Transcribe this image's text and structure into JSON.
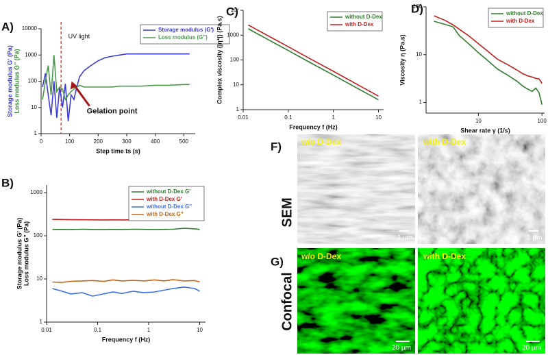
{
  "chart_data": [
    {
      "type": "line",
      "panel": "A)",
      "xlabel": "Step time ts (s)",
      "ylabel": [
        {
          "text": "Storage modulus G' (Pa)",
          "color": "#3a3ad8"
        },
        {
          "text": "Loss modulus G'' (Pa)",
          "color": "#3a8a3a"
        }
      ],
      "xscale": "linear",
      "yscale": "log",
      "xlim": [
        0,
        540
      ],
      "ylim": [
        1,
        10000
      ],
      "xticks": [
        0,
        100,
        200,
        300,
        400,
        500
      ],
      "yticks": [
        1,
        10,
        100,
        1000,
        10000
      ],
      "legend": "upper right",
      "x": [
        5,
        15,
        25,
        35,
        45,
        55,
        65,
        75,
        85,
        95,
        105,
        115,
        125,
        135,
        150,
        175,
        200,
        225,
        250,
        275,
        300,
        350,
        400,
        450,
        500,
        520
      ],
      "series": [
        {
          "name": "Storage modulus (G')",
          "color": "#3a3ad8",
          "values": [
            60,
            200,
            30,
            5,
            100,
            4,
            60,
            10,
            80,
            3,
            30,
            20,
            60,
            150,
            250,
            400,
            600,
            800,
            900,
            1000,
            1100,
            1100,
            1100,
            1100,
            1100,
            1100
          ]
        },
        {
          "name": "Loss modulus (G\")",
          "color": "#4a9a4a",
          "values": [
            20,
            100,
            400,
            30,
            1000,
            40,
            60,
            50,
            20,
            30,
            40,
            50,
            60,
            70,
            60,
            60,
            60,
            60,
            60,
            65,
            65,
            65,
            70,
            70,
            75,
            75
          ]
        }
      ],
      "vline": 70,
      "annotations": [
        {
          "text": "UV light",
          "x": 95,
          "y": 5000
        },
        {
          "text": "Gelation point",
          "x": 160,
          "y": 7
        }
      ]
    },
    {
      "type": "line",
      "panel": "B)",
      "xlabel": "Frequency f (Hz)",
      "ylabel": [
        {
          "text": "Storage modulus G' (Pa)",
          "color": "#111111"
        },
        {
          "text": "Loss modulus G'' (Pa)",
          "color": "#111111"
        }
      ],
      "xscale": "log",
      "yscale": "log",
      "xlim": [
        0.01,
        13
      ],
      "ylim": [
        1,
        1500
      ],
      "xticks": [
        0.01,
        0.1,
        1,
        10
      ],
      "yticks": [
        1,
        10,
        100,
        1000
      ],
      "legend": "upper right",
      "x": [
        0.013,
        0.02,
        0.03,
        0.05,
        0.08,
        0.13,
        0.2,
        0.3,
        0.5,
        0.8,
        1.3,
        2,
        3,
        5,
        8,
        10
      ],
      "series": [
        {
          "name": "without D-Dex G'",
          "color": "#2e7d2e",
          "values": [
            140,
            141,
            140,
            142,
            140,
            139,
            141,
            140,
            142,
            141,
            140,
            141,
            142,
            150,
            145,
            140
          ]
        },
        {
          "name": "with D-Dex G'",
          "color": "#c0201e",
          "values": [
            240,
            238,
            236,
            235,
            234,
            233,
            234,
            233,
            235,
            234,
            233,
            234,
            236,
            240,
            238,
            235
          ]
        },
        {
          "name": "without D-Dex G''",
          "color": "#3a6ef0",
          "values": [
            6,
            5.2,
            4.5,
            4.8,
            4,
            4.5,
            5,
            4.6,
            5.2,
            4.8,
            5,
            5.5,
            6,
            6.5,
            6,
            5.2
          ]
        },
        {
          "name": "with D-Dex G''",
          "color": "#c86414",
          "values": [
            8.5,
            8.3,
            8.8,
            9,
            9.2,
            8.8,
            9.5,
            9,
            9.3,
            9,
            9.5,
            9,
            9.6,
            9,
            9.2,
            8.5
          ]
        }
      ]
    },
    {
      "type": "line",
      "panel": "C)",
      "xlabel": "Frequency f (Hz)",
      "ylabel": [
        {
          "text": "Complex viscosity (|η*|) (Pa.s)",
          "color": "#111111"
        }
      ],
      "xscale": "log",
      "yscale": "log",
      "xlim": [
        0.01,
        13
      ],
      "ylim": [
        1,
        10000
      ],
      "xticks": [
        0.01,
        0.1,
        1,
        10
      ],
      "yticks": [
        1,
        10,
        100,
        1000,
        {
          "value": 10000,
          "label": "10⁴"
        }
      ],
      "legend": "upper right",
      "x": [
        0.013,
        0.03,
        0.1,
        0.3,
        1,
        3,
        10
      ],
      "series": [
        {
          "name": "without D-Dex",
          "color": "#2e7d2e",
          "values": [
            1800,
            785,
            240,
            80,
            24.5,
            8.2,
            2.5
          ]
        },
        {
          "name": "with D-Dex",
          "color": "#c0201e",
          "values": [
            2560,
            1115,
            340,
            114,
            35,
            11.7,
            3.5
          ]
        }
      ]
    },
    {
      "type": "line",
      "panel": "D)",
      "xlabel": "Shear rate γ (1/s)",
      "ylabel": [
        {
          "text": "Viscosity η (Pa.s)",
          "color": "#111111"
        }
      ],
      "xscale": "log",
      "yscale": "log",
      "xlim": [
        1.5,
        110
      ],
      "ylim": [
        0.6,
        100
      ],
      "xticks": [
        10,
        100
      ],
      "yticks": [
        1,
        10,
        100
      ],
      "legend": "upper right",
      "x": [
        2,
        3,
        4,
        5,
        7,
        10,
        15,
        20,
        30,
        40,
        50,
        60,
        70,
        80,
        90,
        95,
        100
      ],
      "series": [
        {
          "name": "without D-Dex",
          "color": "#2e7d2e",
          "values": [
            50,
            43,
            38,
            25,
            17,
            11,
            7,
            5,
            3.6,
            2.8,
            2.2,
            1.9,
            1.7,
            2,
            1.6,
            1.2,
            0.9
          ]
        },
        {
          "name": "with D-Dex",
          "color": "#c0201e",
          "values": [
            65,
            52,
            42,
            34,
            25,
            17,
            11,
            8,
            6,
            4.8,
            4,
            3.6,
            3.4,
            3.2,
            3.1,
            2.8,
            2.5
          ]
        }
      ]
    }
  ],
  "images": {
    "rows": [
      {
        "panel": "F)",
        "label": "SEM",
        "cells": [
          {
            "caption": "w/o D-Dex",
            "scale": "1 µm"
          },
          {
            "caption": "with D-Dex",
            "scale": "1 µm"
          }
        ]
      },
      {
        "panel": "G)",
        "label": "Confocal",
        "cells": [
          {
            "caption": "w/o D-Dex",
            "scale": "20 µm"
          },
          {
            "caption": "with D-Dex",
            "scale": "20 µm"
          }
        ]
      }
    ]
  }
}
